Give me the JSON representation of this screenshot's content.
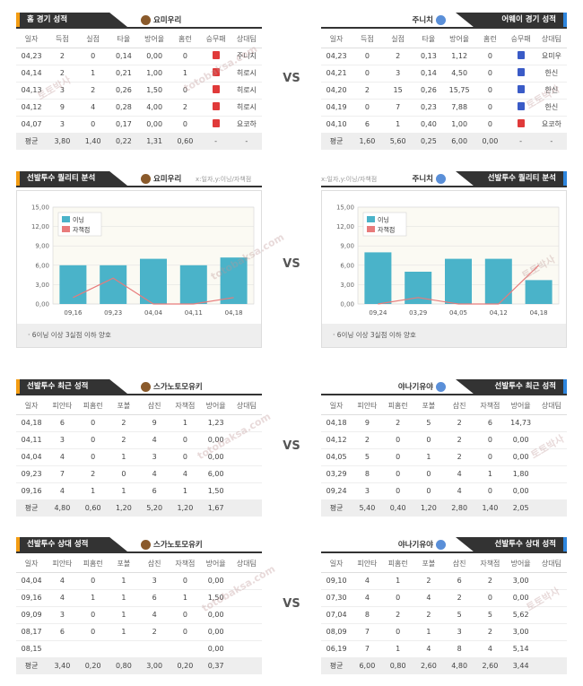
{
  "colors": {
    "loss": "#e03a3a",
    "win": "#3a5bc7",
    "bar": "#4ab3c9",
    "line": "#e87b7b",
    "accentL": "#f39c12",
    "accentR": "#2e86de"
  },
  "vs": "VS",
  "s1": {
    "left": {
      "tab": "홈 경기 성적",
      "team": "요미우리",
      "icon": "giants-logo-icon",
      "headers": [
        "일자",
        "득점",
        "실점",
        "타율",
        "방어율",
        "홈런",
        "승무패",
        "상대팀"
      ],
      "rows": [
        [
          "04,23",
          "2",
          "0",
          "0,14",
          "0,00",
          "0",
          "L",
          "주니치"
        ],
        [
          "04,14",
          "2",
          "1",
          "0,21",
          "1,00",
          "1",
          "L",
          "히로시"
        ],
        [
          "04,13",
          "3",
          "2",
          "0,26",
          "1,50",
          "0",
          "L",
          "히로시"
        ],
        [
          "04,12",
          "9",
          "4",
          "0,28",
          "4,00",
          "2",
          "L",
          "히로시"
        ],
        [
          "04,07",
          "3",
          "0",
          "0,17",
          "0,00",
          "0",
          "L",
          "요코하"
        ]
      ],
      "avg": [
        "평균",
        "3,80",
        "1,40",
        "0,22",
        "1,31",
        "0,60",
        "-",
        "-"
      ]
    },
    "right": {
      "tab": "어웨이 경기 성적",
      "team": "주니치",
      "icon": "dragons-logo-icon",
      "headers": [
        "일자",
        "득점",
        "실점",
        "타율",
        "방어율",
        "홈런",
        "승무패",
        "상대팀"
      ],
      "rows": [
        [
          "04,23",
          "0",
          "2",
          "0,13",
          "1,12",
          "0",
          "W",
          "요미우"
        ],
        [
          "04,21",
          "0",
          "3",
          "0,14",
          "4,50",
          "0",
          "W",
          "한신"
        ],
        [
          "04,20",
          "2",
          "15",
          "0,26",
          "15,75",
          "0",
          "W",
          "한신"
        ],
        [
          "04,19",
          "0",
          "7",
          "0,23",
          "7,88",
          "0",
          "W",
          "한신"
        ],
        [
          "04,10",
          "6",
          "1",
          "0,40",
          "1,00",
          "0",
          "L",
          "요코하"
        ]
      ],
      "avg": [
        "평균",
        "1,60",
        "5,60",
        "0,25",
        "6,00",
        "0,00",
        "-",
        "-"
      ]
    }
  },
  "s2": {
    "left": {
      "tab": "선발투수 퀄리티 분석",
      "team": "요미우리",
      "note": "x:일자,y:이닝/자책점",
      "footer": "· 6이닝 이상 3실점 이하 양호"
    },
    "right": {
      "tab": "선발투수 퀄리티 분석",
      "team": "주니치",
      "note": "x:일자,y:이닝/자책점",
      "footer": "· 6이닝 이상 3실점 이하 양호"
    }
  },
  "chart_data": [
    {
      "type": "bar",
      "categories": [
        "09,16",
        "09,23",
        "04,04",
        "04,11",
        "04,18"
      ],
      "series": [
        {
          "name": "이닝",
          "values": [
            6,
            6,
            7,
            6,
            7.2
          ]
        },
        {
          "name": "자책점",
          "values": [
            1,
            4,
            0,
            0,
            1
          ]
        }
      ],
      "yticks": [
        "15,00",
        "12,00",
        "9,00",
        "6,00",
        "3,00",
        "0,00"
      ],
      "ylim": [
        0,
        15
      ],
      "legend": "top-left"
    },
    {
      "type": "bar",
      "categories": [
        "09,24",
        "03,29",
        "04,05",
        "04,12",
        "04,18"
      ],
      "series": [
        {
          "name": "이닝",
          "values": [
            8,
            5,
            7,
            7,
            3.7
          ]
        },
        {
          "name": "자책점",
          "values": [
            0,
            1,
            0,
            0,
            6
          ]
        }
      ],
      "yticks": [
        "15,00",
        "12,00",
        "9,00",
        "6,00",
        "3,00",
        "0,00"
      ],
      "ylim": [
        0,
        15
      ],
      "legend": "top-left"
    }
  ],
  "s3": {
    "left": {
      "tab": "선발투수 최근 성적",
      "team": "스가노토모유키",
      "headers": [
        "일자",
        "피안타",
        "피홈런",
        "포볼",
        "삼진",
        "자책점",
        "방어율",
        "상대팀"
      ],
      "rows": [
        [
          "04,18",
          "6",
          "0",
          "2",
          "9",
          "1",
          "1,23",
          ""
        ],
        [
          "04,11",
          "3",
          "0",
          "2",
          "4",
          "0",
          "0,00",
          ""
        ],
        [
          "04,04",
          "4",
          "0",
          "1",
          "3",
          "0",
          "0,00",
          ""
        ],
        [
          "09,23",
          "7",
          "2",
          "0",
          "4",
          "4",
          "6,00",
          ""
        ],
        [
          "09,16",
          "4",
          "1",
          "1",
          "6",
          "1",
          "1,50",
          ""
        ]
      ],
      "avg": [
        "평균",
        "4,80",
        "0,60",
        "1,20",
        "5,20",
        "1,20",
        "1,67",
        ""
      ]
    },
    "right": {
      "tab": "선발투수 최근 성적",
      "team": "야나기유야",
      "headers": [
        "일자",
        "피안타",
        "피홈런",
        "포볼",
        "삼진",
        "자책점",
        "방어율",
        "상대팀"
      ],
      "rows": [
        [
          "04,18",
          "9",
          "2",
          "5",
          "2",
          "6",
          "14,73",
          ""
        ],
        [
          "04,12",
          "2",
          "0",
          "0",
          "2",
          "0",
          "0,00",
          ""
        ],
        [
          "04,05",
          "5",
          "0",
          "1",
          "2",
          "0",
          "0,00",
          ""
        ],
        [
          "03,29",
          "8",
          "0",
          "0",
          "4",
          "1",
          "1,80",
          ""
        ],
        [
          "09,24",
          "3",
          "0",
          "0",
          "4",
          "0",
          "0,00",
          ""
        ]
      ],
      "avg": [
        "평균",
        "5,40",
        "0,40",
        "1,20",
        "2,80",
        "1,40",
        "2,05",
        ""
      ]
    }
  },
  "s4": {
    "left": {
      "tab": "선발투수 상대 성적",
      "team": "스가노토모유키",
      "headers": [
        "일자",
        "피안타",
        "피홈런",
        "포볼",
        "삼진",
        "자책점",
        "방어율",
        "상대팀"
      ],
      "rows": [
        [
          "04,04",
          "4",
          "0",
          "1",
          "3",
          "0",
          "0,00",
          ""
        ],
        [
          "09,16",
          "4",
          "1",
          "1",
          "6",
          "1",
          "1,50",
          ""
        ],
        [
          "09,09",
          "3",
          "0",
          "1",
          "4",
          "0",
          "0,00",
          ""
        ],
        [
          "08,17",
          "6",
          "0",
          "1",
          "2",
          "0",
          "0,00",
          ""
        ],
        [
          "08,15",
          "",
          "",
          "",
          "",
          "",
          "0,00",
          ""
        ]
      ],
      "avg": [
        "평균",
        "3,40",
        "0,20",
        "0,80",
        "3,00",
        "0,20",
        "0,37",
        ""
      ]
    },
    "right": {
      "tab": "선발투수 상대 성적",
      "team": "야나기유야",
      "headers": [
        "일자",
        "피안타",
        "피홈런",
        "포볼",
        "삼진",
        "자책점",
        "방어율",
        "상대팀"
      ],
      "rows": [
        [
          "09,10",
          "4",
          "1",
          "2",
          "6",
          "2",
          "3,00",
          ""
        ],
        [
          "07,30",
          "4",
          "0",
          "4",
          "2",
          "0",
          "0,00",
          ""
        ],
        [
          "07,04",
          "8",
          "2",
          "2",
          "5",
          "5",
          "5,62",
          ""
        ],
        [
          "08,09",
          "7",
          "0",
          "1",
          "3",
          "2",
          "3,00",
          ""
        ],
        [
          "06,19",
          "7",
          "1",
          "4",
          "8",
          "4",
          "5,14",
          ""
        ]
      ],
      "avg": [
        "평균",
        "6,00",
        "0,80",
        "2,60",
        "4,80",
        "2,60",
        "3,44",
        ""
      ]
    }
  },
  "watermark": {
    "a": "토토박사",
    "b": "totobaksa.com"
  }
}
